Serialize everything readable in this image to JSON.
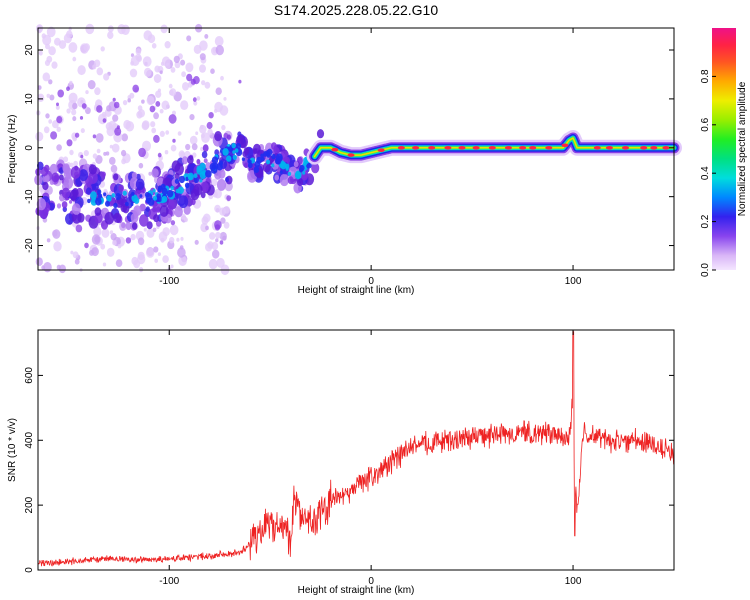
{
  "title": "S174.2025.228.05.22.G10",
  "chart_data": [
    {
      "type": "heatmap",
      "xlabel": "Height of straight line (km)",
      "ylabel": "Frequency (Hz)",
      "xlim": [
        -165,
        150
      ],
      "ylim": [
        -25,
        24.5
      ],
      "xticks": [
        -100,
        0,
        100
      ],
      "yticks": [
        -20,
        -10,
        0,
        10,
        20
      ],
      "colorbar": {
        "label": "Normalized spectral amplitude",
        "range": [
          0,
          1
        ],
        "ticks": [
          "0.0",
          "0.2",
          "0.4",
          "0.6",
          "0.8"
        ]
      },
      "ridge": {
        "x": [
          -165,
          -150,
          -130,
          -115,
          -100,
          -90,
          -80,
          -70,
          -65,
          -60,
          -50,
          -40,
          -35,
          -30,
          -25,
          -20,
          -15,
          -10,
          -5,
          0,
          10,
          50,
          95,
          98,
          100,
          102,
          105,
          150
        ],
        "freq": [
          -9,
          -9,
          -10.5,
          -11,
          -9,
          -7,
          -4,
          -1,
          0,
          -4,
          -2,
          -5,
          -5.5,
          -3,
          0,
          0,
          -1,
          -1.5,
          -1.5,
          -1,
          0,
          0,
          0,
          1.5,
          2,
          0,
          0,
          0
        ]
      }
    },
    {
      "type": "line",
      "xlabel": "Height of straight line (km)",
      "ylabel": "SNR (10 * v/v)",
      "xlim": [
        -165,
        150
      ],
      "ylim": [
        0,
        740
      ],
      "xticks": [
        -100,
        0,
        100
      ],
      "yticks": [
        0,
        200,
        400,
        600
      ],
      "color": "#ee2222",
      "series": [
        {
          "name": "SNR",
          "x": [
            -165,
            -150,
            -130,
            -110,
            -90,
            -80,
            -70,
            -65,
            -60,
            -55,
            -50,
            -45,
            -40,
            -38,
            -35,
            -30,
            -25,
            -20,
            -15,
            -10,
            -5,
            0,
            10,
            20,
            30,
            40,
            50,
            60,
            70,
            80,
            90,
            95,
            98,
            100,
            101,
            102,
            105,
            110,
            120,
            130,
            140,
            145,
            150
          ],
          "y": [
            20,
            25,
            35,
            30,
            38,
            45,
            50,
            55,
            80,
            110,
            150,
            140,
            90,
            240,
            180,
            140,
            170,
            210,
            230,
            240,
            270,
            290,
            330,
            380,
            395,
            400,
            410,
            415,
            420,
            420,
            425,
            420,
            400,
            520,
            250,
            180,
            420,
            410,
            400,
            400,
            390,
            370,
            360
          ]
        }
      ]
    }
  ]
}
